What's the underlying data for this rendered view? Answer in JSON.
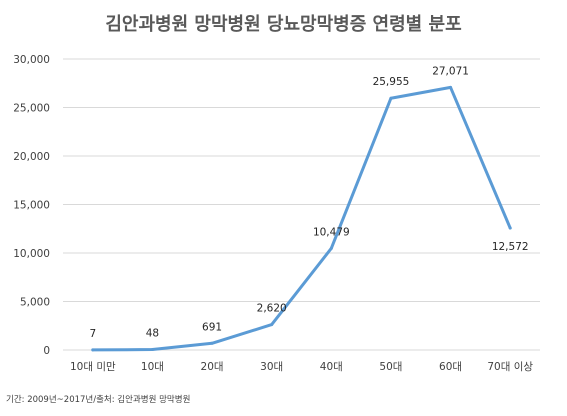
{
  "chart_data": {
    "type": "line",
    "title": "김안과병원 망막병원 당뇨망막병증 연령별 분포",
    "categories": [
      "10대 미만",
      "10대",
      "20대",
      "30대",
      "40대",
      "50대",
      "60대",
      "70대 이상"
    ],
    "series": [
      {
        "values": [
          7,
          48,
          691,
          2620,
          10479,
          25955,
          27071,
          12572
        ],
        "color": "#5b9bd5"
      }
    ],
    "data_labels": [
      "7",
      "48",
      "691",
      "2,620",
      "10,479",
      "25,955",
      "27,071",
      "12,572"
    ],
    "yticks": [
      0,
      5000,
      10000,
      15000,
      20000,
      25000,
      30000
    ],
    "ytick_labels": [
      "0",
      "5,000",
      "10,000",
      "15,000",
      "20,000",
      "25,000",
      "30,000"
    ],
    "ylim": [
      0,
      30000
    ],
    "xlabel": "",
    "ylabel": "",
    "grid": true,
    "legend": "none"
  },
  "footer": {
    "note": "기간: 2009년~2017년/출처:  김안과병원  망막병원"
  }
}
